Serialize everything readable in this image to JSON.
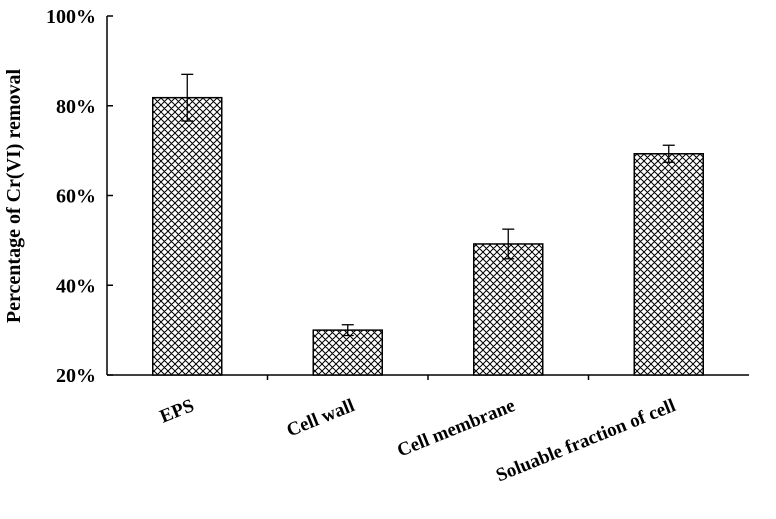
{
  "chart_data": {
    "type": "bar",
    "title": "",
    "xlabel": "",
    "ylabel": "Percentage of Cr(VI) removal",
    "ylim": [
      20,
      100
    ],
    "yticks": [
      "20%",
      "40%",
      "60%",
      "80%",
      "100%"
    ],
    "ytick_values": [
      20,
      40,
      60,
      80,
      100
    ],
    "categories": [
      "EPS",
      "Cell wall",
      "Cell membrane",
      "Soluable fraction of cell"
    ],
    "values": [
      81.8,
      30.0,
      49.2,
      69.3
    ],
    "errors": [
      5.2,
      1.2,
      3.3,
      1.9
    ],
    "bar_fill": "crosshatch",
    "bar_color": "#000000",
    "grid": false,
    "legend": "none"
  }
}
